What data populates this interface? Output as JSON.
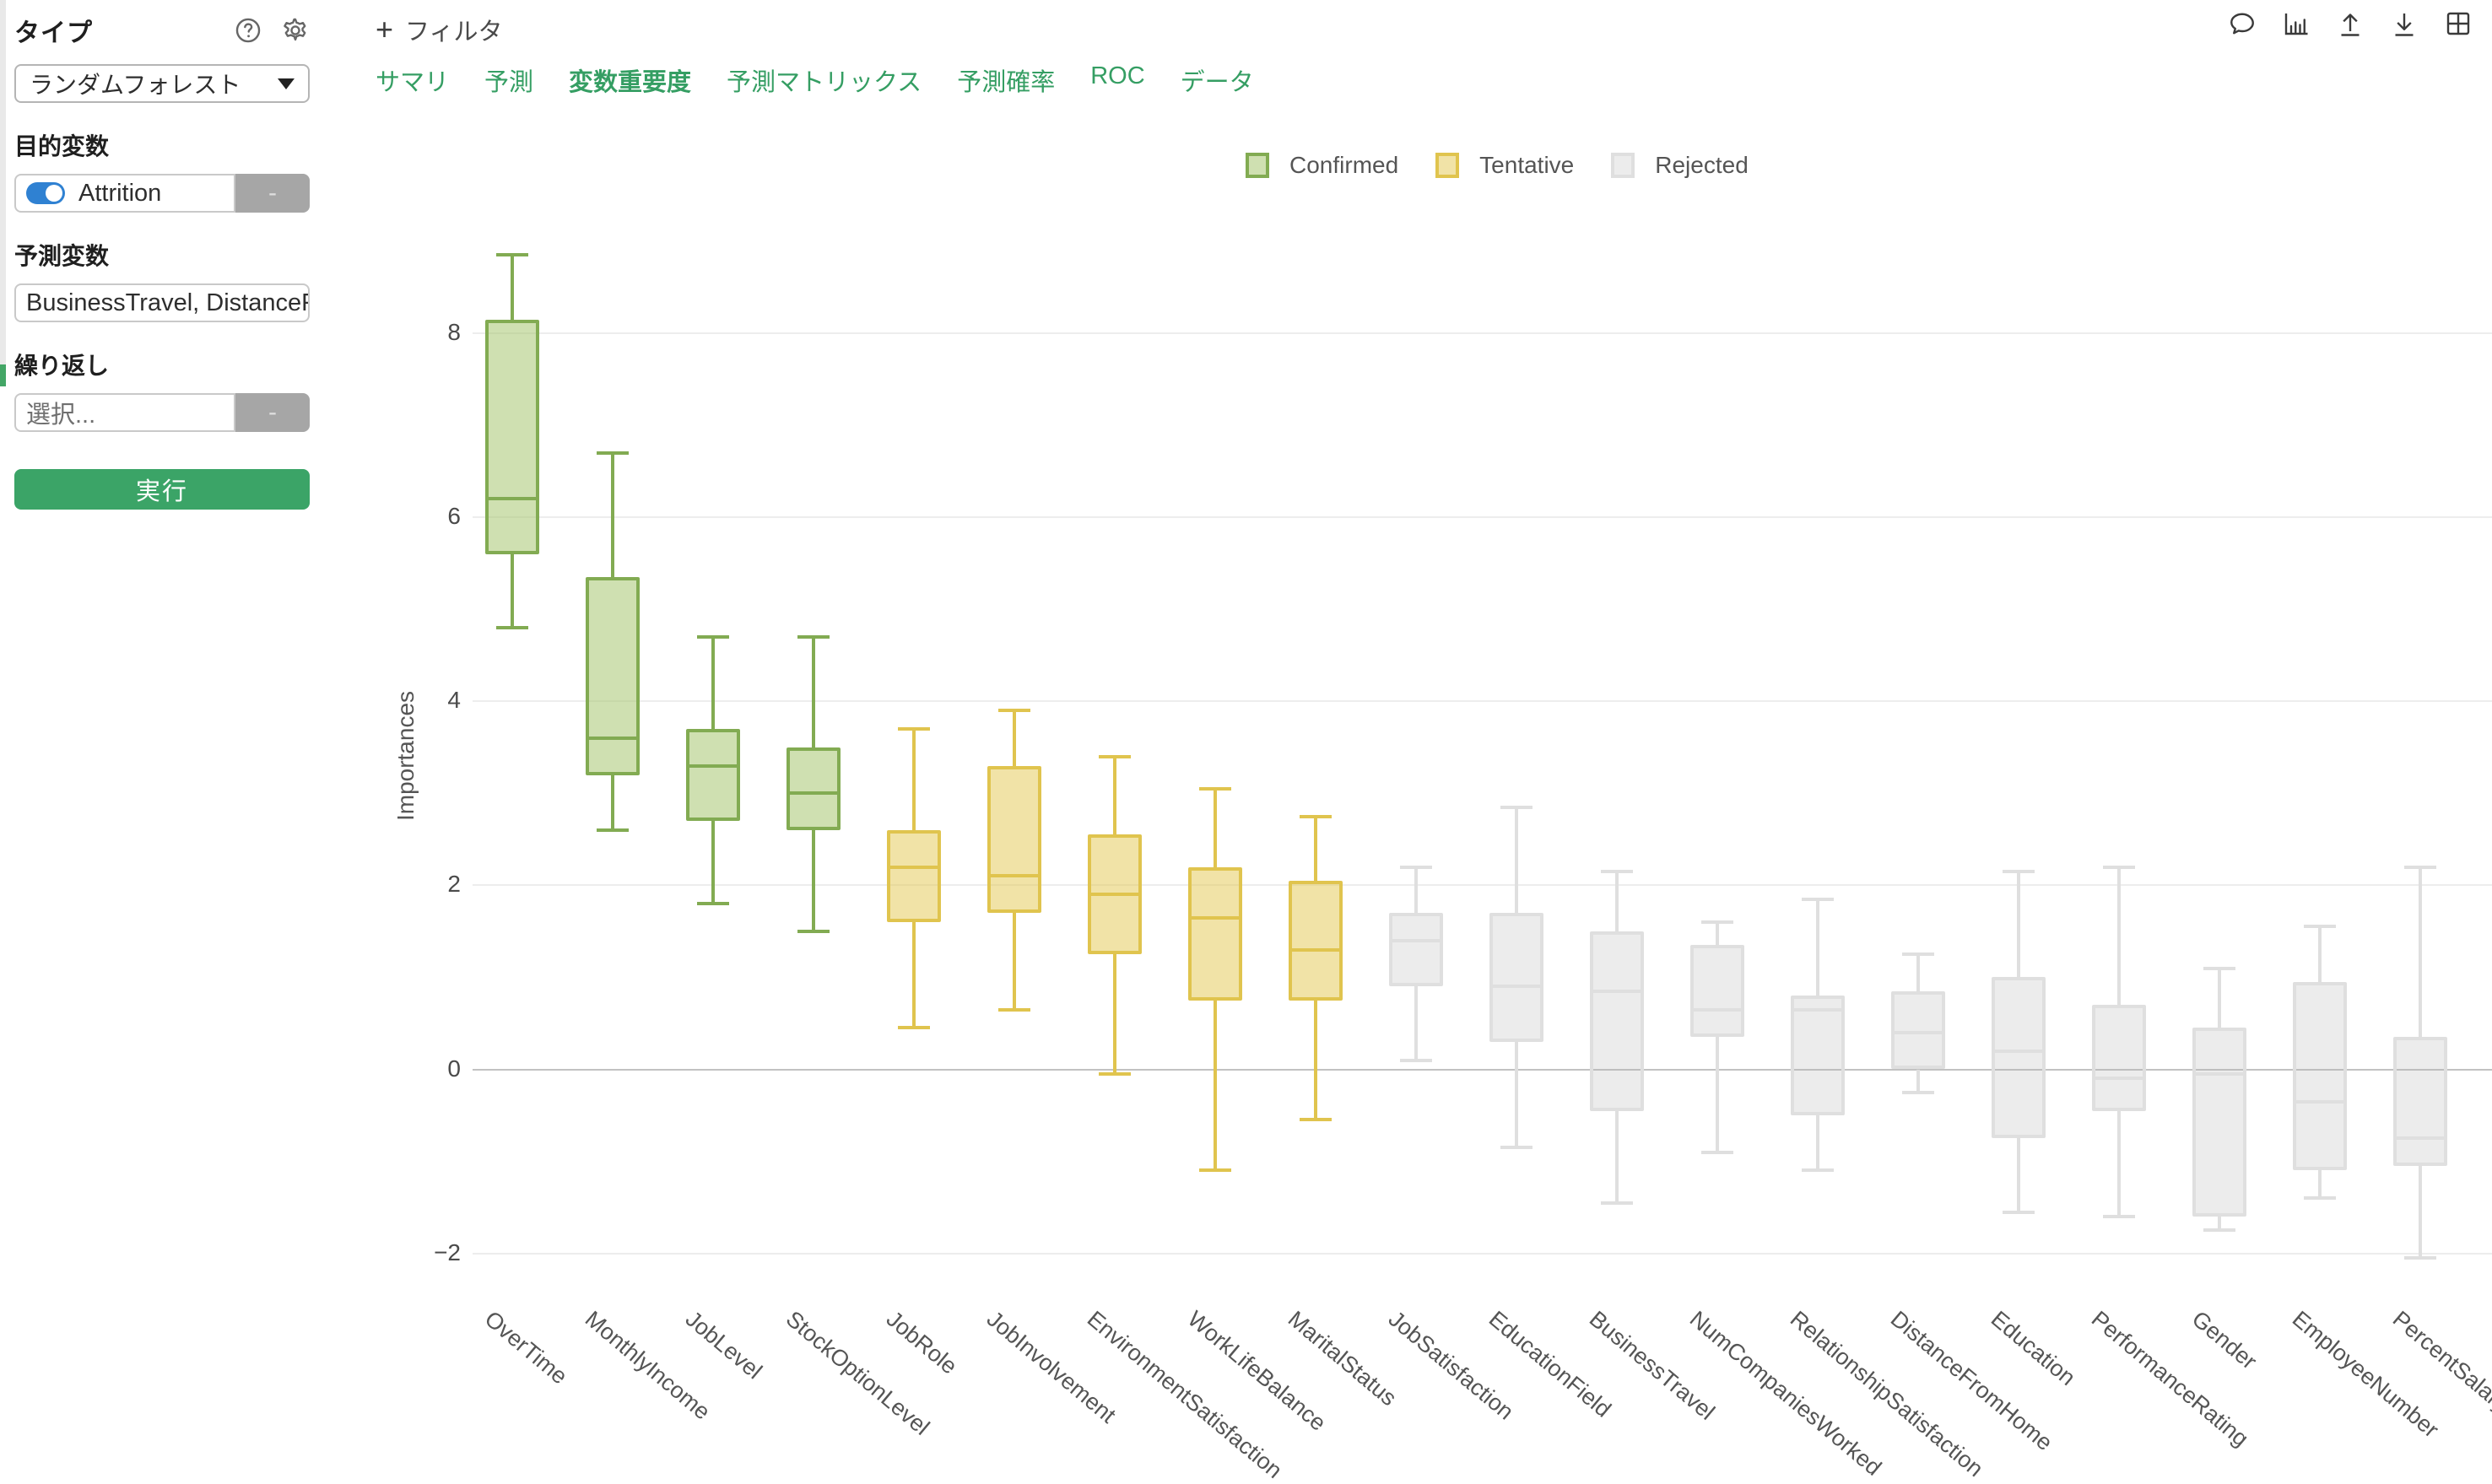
{
  "sidebar": {
    "type_label": "タイプ",
    "type_value": "ランダムフォレスト",
    "target_label": "目的変数",
    "target_value": "Attrition",
    "predictors_label": "予測変数",
    "predictors_value": "BusinessTravel, DistanceFr...",
    "repeat_label": "繰り返し",
    "repeat_placeholder": "選択...",
    "minus_label": "-",
    "run_label": "実行"
  },
  "toolbar": {
    "filter_label": "フィルタ",
    "icons": [
      "comment-icon",
      "chart-icon",
      "upload-icon",
      "download-icon",
      "grid-icon"
    ]
  },
  "tabs": [
    {
      "label": "サマリ",
      "active": false
    },
    {
      "label": "予測",
      "active": false
    },
    {
      "label": "変数重要度",
      "active": true
    },
    {
      "label": "予測マトリックス",
      "active": false
    },
    {
      "label": "予測確率",
      "active": false
    },
    {
      "label": "ROC",
      "active": false
    },
    {
      "label": "データ",
      "active": false
    }
  ],
  "legend": [
    {
      "label": "Confirmed",
      "status": "confirmed"
    },
    {
      "label": "Tentative",
      "status": "tentative"
    },
    {
      "label": "Rejected",
      "status": "rejected"
    }
  ],
  "colors": {
    "confirmed_fill": "rgba(168,199,113,0.55)",
    "confirmed_border": "#82ab52",
    "tentative_fill": "rgba(227,200,79,0.5)",
    "tentative_border": "#e0c44e",
    "rejected_fill": "rgba(180,180,180,0.25)",
    "rejected_border": "#dfdfdf",
    "accent_green": "#359e63",
    "run_button_green": "#3ba467",
    "toggle_blue": "#2f81d2",
    "zero_line": "#c2c2c2",
    "grid_line": "#ededed"
  },
  "chart_data": {
    "type": "boxplot",
    "title": "",
    "xlabel": "",
    "ylabel": "Importances",
    "yticks": [
      8,
      6,
      4,
      2,
      0,
      -2
    ],
    "ylim": [
      -2.6,
      9.3
    ],
    "grid": true,
    "legend_position": "top",
    "categories": [
      "OverTime",
      "MonthlyIncome",
      "JobLevel",
      "StockOptionLevel",
      "JobRole",
      "JobInvolvement",
      "EnvironmentSatisfaction",
      "WorkLifeBalance",
      "MaritalStatus",
      "JobSatisfaction",
      "EducationField",
      "BusinessTravel",
      "NumCompaniesWorked",
      "RelationshipSatisfaction",
      "DistanceFromHome",
      "Education",
      "PerformanceRating",
      "Gender",
      "EmployeeNumber",
      "PercentSalaryHike"
    ],
    "boxes": [
      {
        "name": "OverTime",
        "status": "confirmed",
        "low": 4.8,
        "q1": 5.6,
        "median": 6.2,
        "q3": 8.15,
        "high": 8.85
      },
      {
        "name": "MonthlyIncome",
        "status": "confirmed",
        "low": 2.6,
        "q1": 3.2,
        "median": 3.6,
        "q3": 5.35,
        "high": 6.7
      },
      {
        "name": "JobLevel",
        "status": "confirmed",
        "low": 1.8,
        "q1": 2.7,
        "median": 3.3,
        "q3": 3.7,
        "high": 4.7
      },
      {
        "name": "StockOptionLevel",
        "status": "confirmed",
        "low": 1.5,
        "q1": 2.6,
        "median": 3.0,
        "q3": 3.5,
        "high": 4.7
      },
      {
        "name": "JobRole",
        "status": "tentative",
        "low": 0.45,
        "q1": 1.6,
        "median": 2.2,
        "q3": 2.6,
        "high": 3.7
      },
      {
        "name": "JobInvolvement",
        "status": "tentative",
        "low": 0.65,
        "q1": 1.7,
        "median": 2.1,
        "q3": 3.3,
        "high": 3.9
      },
      {
        "name": "EnvironmentSatisfaction",
        "status": "tentative",
        "low": -0.05,
        "q1": 1.25,
        "median": 1.9,
        "q3": 2.55,
        "high": 3.4
      },
      {
        "name": "WorkLifeBalance",
        "status": "tentative",
        "low": -1.1,
        "q1": 0.75,
        "median": 1.65,
        "q3": 2.2,
        "high": 3.05
      },
      {
        "name": "MaritalStatus",
        "status": "tentative",
        "low": -0.55,
        "q1": 0.75,
        "median": 1.3,
        "q3": 2.05,
        "high": 2.75
      },
      {
        "name": "JobSatisfaction",
        "status": "rejected",
        "low": 0.1,
        "q1": 0.9,
        "median": 1.4,
        "q3": 1.7,
        "high": 2.2
      },
      {
        "name": "EducationField",
        "status": "rejected",
        "low": -0.85,
        "q1": 0.3,
        "median": 0.9,
        "q3": 1.7,
        "high": 2.85
      },
      {
        "name": "BusinessTravel",
        "status": "rejected",
        "low": -1.45,
        "q1": -0.45,
        "median": 0.85,
        "q3": 1.5,
        "high": 2.15
      },
      {
        "name": "NumCompaniesWorked",
        "status": "rejected",
        "low": -0.9,
        "q1": 0.35,
        "median": 0.65,
        "q3": 1.35,
        "high": 1.6
      },
      {
        "name": "RelationshipSatisfaction",
        "status": "rejected",
        "low": -1.1,
        "q1": -0.5,
        "median": 0.65,
        "q3": 0.8,
        "high": 1.85
      },
      {
        "name": "DistanceFromHome",
        "status": "rejected",
        "low": -0.25,
        "q1": 0.0,
        "median": 0.4,
        "q3": 0.85,
        "high": 1.25
      },
      {
        "name": "Education",
        "status": "rejected",
        "low": -1.55,
        "q1": -0.75,
        "median": 0.2,
        "q3": 1.0,
        "high": 2.15
      },
      {
        "name": "PerformanceRating",
        "status": "rejected",
        "low": -1.6,
        "q1": -0.45,
        "median": -0.1,
        "q3": 0.7,
        "high": 2.2
      },
      {
        "name": "Gender",
        "status": "rejected",
        "low": -1.75,
        "q1": -1.6,
        "median": -0.05,
        "q3": 0.45,
        "high": 1.1
      },
      {
        "name": "EmployeeNumber",
        "status": "rejected",
        "low": -1.4,
        "q1": -1.1,
        "median": -0.35,
        "q3": 0.95,
        "high": 1.55
      },
      {
        "name": "PercentSalaryHike",
        "status": "rejected",
        "low": -2.05,
        "q1": -1.05,
        "median": -0.75,
        "q3": 0.35,
        "high": 2.2
      }
    ]
  }
}
